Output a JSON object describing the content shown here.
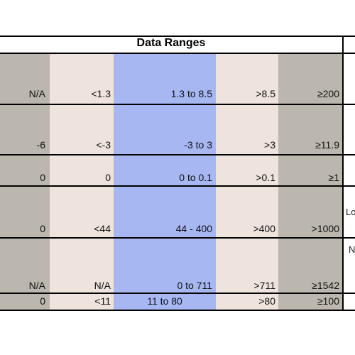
{
  "title": "Data Ranges",
  "rows": [
    {
      "c0": "N/A",
      "c1": "<1.3",
      "c2": "1.3 to 8.5",
      "c3": ">8.5",
      "c4": "≥200"
    },
    {
      "c0": "-6",
      "c1": "<-3",
      "c2": "-3 to 3",
      "c3": ">3",
      "c4": "≥11.9"
    },
    {
      "c0": "0",
      "c1": "0",
      "c2": "0 to 0.1",
      "c3": ">0.1",
      "c4": "≥1"
    },
    {
      "c0": "0",
      "c1": "<44",
      "c2": "44 - 400",
      "c3": ">400",
      "c4": ">1000"
    },
    {
      "c0": "N/A",
      "c1": "N/A",
      "c2": "0 to 711",
      "c3": ">711",
      "c4": "≥1542"
    },
    {
      "c0": "0",
      "c1": "<11",
      "c2": "11  to 80",
      "c3": ">80",
      "c4": "≥100"
    }
  ],
  "side_labels": [
    "Lo",
    "N"
  ],
  "colors": {
    "gray": "#bcb7ae",
    "beige": "#eee4dd",
    "blue": "#a7b7f2"
  }
}
